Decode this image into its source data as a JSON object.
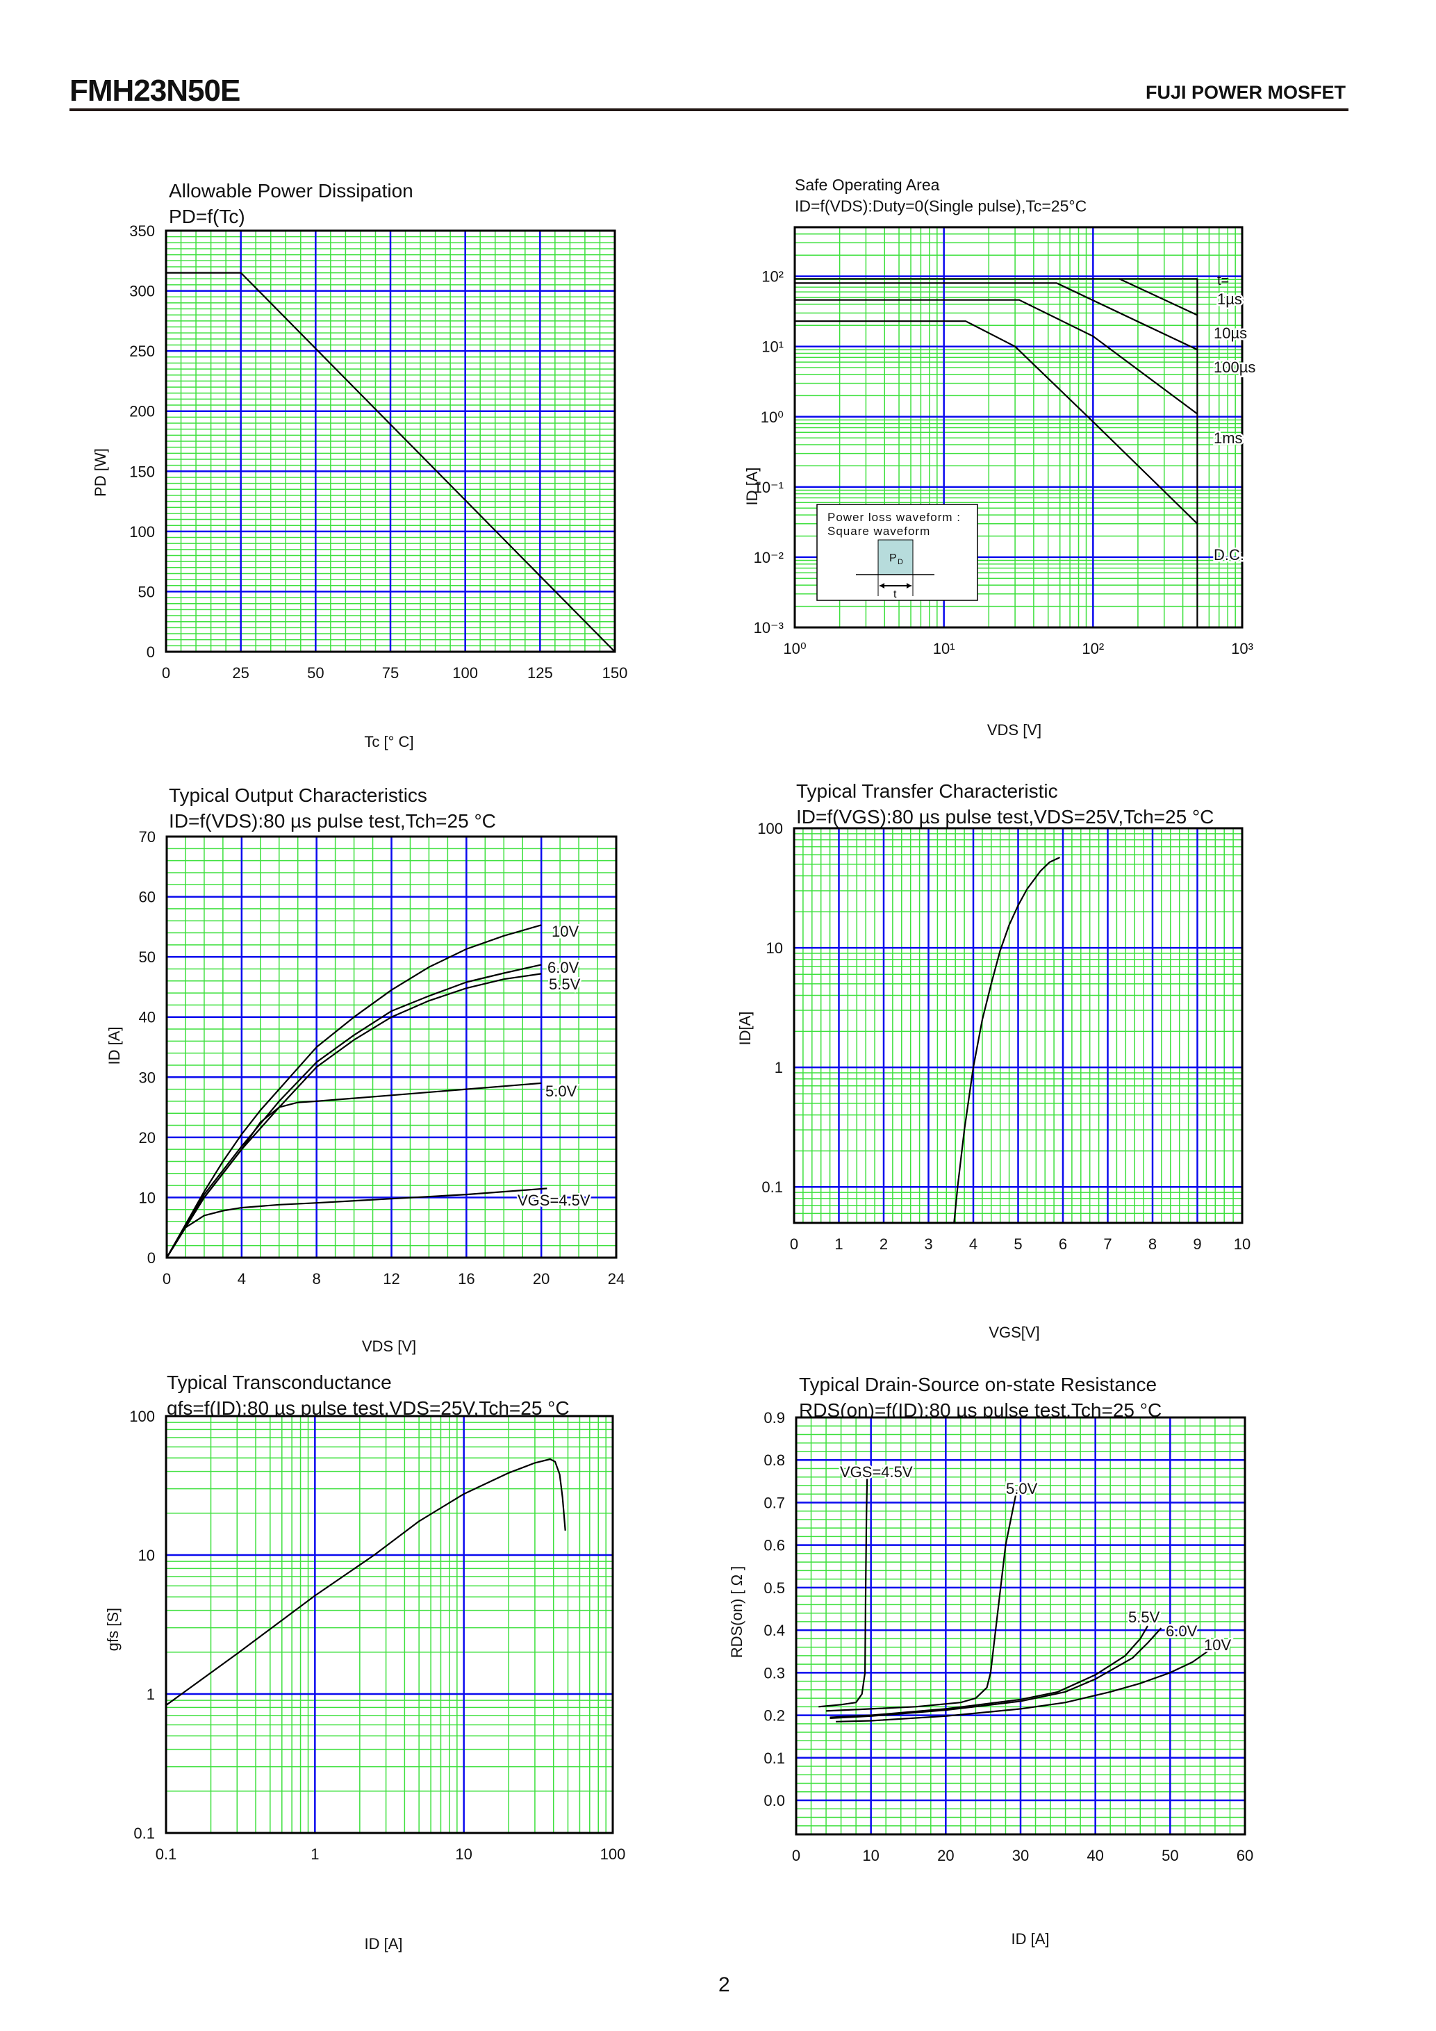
{
  "header": {
    "part_number": "FMH23N50E",
    "brand": "FUJI POWER MOSFET"
  },
  "footer": {
    "page_number": "2"
  },
  "colors": {
    "minor_grid": "#3ee03e",
    "major_grid": "#0a0aee",
    "curve": "#000000",
    "frame": "#000000",
    "pd_box_fill": "#b7dcdc"
  },
  "chart_data": [
    {
      "type": "line",
      "title": "Allowable Power Dissipation",
      "subtitle": "PD=f(Tc)",
      "xlabel": "Tc [° C]",
      "ylabel": "PD [W]",
      "xscale": "linear",
      "yscale": "linear",
      "xlim": [
        0,
        150
      ],
      "ylim": [
        0,
        350
      ],
      "xticks": [
        0,
        25,
        50,
        75,
        100,
        125,
        150
      ],
      "xtick_labels": [
        "0",
        "25",
        "50",
        "75",
        "100",
        "125",
        "150"
      ],
      "yticks": [
        0,
        50,
        100,
        150,
        200,
        250,
        300,
        350
      ],
      "ytick_labels": [
        "0",
        "50",
        "100",
        "150",
        "200",
        "250",
        "300",
        "350"
      ],
      "grid": true,
      "series": [
        {
          "points": [
            [
              0,
              315
            ],
            [
              25,
              315
            ],
            [
              150,
              0
            ]
          ]
        }
      ]
    },
    {
      "type": "line",
      "title": "Safe Operating Area",
      "subtitle": "ID=f(VDS):Duty=0(Single pulse),Tc=25°C",
      "xlabel": "VDS [V]",
      "ylabel": "ID [A]",
      "xscale": "log",
      "yscale": "log",
      "xlim": [
        1,
        1000
      ],
      "ylim": [
        0.001,
        500
      ],
      "xticks": [
        1,
        10,
        100,
        1000
      ],
      "xtick_labels": [
        "10⁰",
        "10¹",
        "10²",
        "10³"
      ],
      "yticks": [
        0.001,
        0.01,
        0.1,
        1,
        10,
        100
      ],
      "ytick_labels": [
        "10⁻³",
        "10⁻²",
        "10⁻¹",
        "10⁰",
        "10¹",
        "10²"
      ],
      "grid": true,
      "legend_header": "t=",
      "series": [
        {
          "name": "1µs",
          "points": [
            [
              1,
              92
            ],
            [
              500,
              92
            ],
            [
              500,
              0.001
            ]
          ],
          "extra": [
            [
              150,
              92
            ],
            [
              500,
              28
            ]
          ]
        },
        {
          "name": "10µs",
          "points": [
            [
              1,
              80
            ],
            [
              57,
              80
            ],
            [
              500,
              9
            ]
          ]
        },
        {
          "name": "100µs",
          "points": [
            [
              1,
              46
            ],
            [
              32,
              46
            ],
            [
              100,
              14
            ],
            [
              500,
              1.1
            ]
          ]
        },
        {
          "name": "1ms",
          "points": []
        },
        {
          "name": "D.C.",
          "points": [
            [
              1,
              23
            ],
            [
              14,
              23
            ],
            [
              30,
              10
            ],
            [
              100,
              0.85
            ],
            [
              500,
              0.03
            ]
          ]
        }
      ],
      "inset": {
        "line1": "Power loss waveform :",
        "line2": "Square waveform",
        "pulse_label": "P",
        "pulse_sub": "D",
        "width_label": "t"
      }
    },
    {
      "type": "line",
      "title": "Typical Output Characteristics",
      "subtitle": "ID=f(VDS):80 µs pulse test,Tch=25 °C",
      "xlabel": "VDS [V]",
      "ylabel": "ID [A]",
      "xscale": "linear",
      "yscale": "linear",
      "xlim": [
        0,
        24
      ],
      "ylim": [
        0,
        70
      ],
      "xticks": [
        0,
        4,
        8,
        12,
        16,
        20,
        24
      ],
      "xtick_labels": [
        "0",
        "4",
        "8",
        "12",
        "16",
        "20",
        "24"
      ],
      "yticks": [
        0,
        10,
        20,
        30,
        40,
        50,
        60,
        70
      ],
      "ytick_labels": [
        "0",
        "10",
        "20",
        "30",
        "40",
        "50",
        "60",
        "70"
      ],
      "grid": true,
      "series": [
        {
          "name": "10V",
          "points": [
            [
              0,
              0
            ],
            [
              1,
              5.5
            ],
            [
              2,
              11
            ],
            [
              3,
              16
            ],
            [
              4,
              20.5
            ],
            [
              5,
              24.5
            ],
            [
              6,
              28
            ],
            [
              7,
              31.5
            ],
            [
              8,
              35
            ],
            [
              10,
              40
            ],
            [
              12,
              44.5
            ],
            [
              14,
              48.3
            ],
            [
              16,
              51.3
            ],
            [
              18,
              53.5
            ],
            [
              20,
              55.3
            ]
          ]
        },
        {
          "name": "6.0V",
          "points": [
            [
              0,
              0
            ],
            [
              2,
              10.5
            ],
            [
              4,
              18.5
            ],
            [
              6,
              26
            ],
            [
              8,
              32.5
            ],
            [
              10,
              37
            ],
            [
              12,
              41
            ],
            [
              14,
              43.5
            ],
            [
              16,
              45.8
            ],
            [
              18,
              47.3
            ],
            [
              20,
              48.7
            ]
          ]
        },
        {
          "name": "5.5V",
          "points": [
            [
              0,
              0
            ],
            [
              2,
              10
            ],
            [
              4,
              18
            ],
            [
              6,
              25
            ],
            [
              8,
              31.7
            ],
            [
              10,
              36.2
            ],
            [
              12,
              40
            ],
            [
              14,
              42.7
            ],
            [
              16,
              44.8
            ],
            [
              18,
              46.3
            ],
            [
              20,
              47.2
            ]
          ]
        },
        {
          "name": "5.0V",
          "points": [
            [
              0,
              0
            ],
            [
              2,
              10
            ],
            [
              4,
              18
            ],
            [
              5,
              22.5
            ],
            [
              6,
              25
            ],
            [
              7,
              25.8
            ],
            [
              8,
              26
            ],
            [
              12,
              27
            ],
            [
              16,
              28
            ],
            [
              20,
              29
            ]
          ]
        },
        {
          "name": "VGS=4.5V",
          "points": [
            [
              0,
              0
            ],
            [
              1,
              5
            ],
            [
              2,
              7
            ],
            [
              3,
              7.8
            ],
            [
              4,
              8.3
            ],
            [
              6,
              8.8
            ],
            [
              8,
              9.1
            ],
            [
              12,
              9.8
            ],
            [
              16,
              10.5
            ],
            [
              20.3,
              11.5
            ]
          ]
        }
      ]
    },
    {
      "type": "line",
      "title": "Typical Transfer Characteristic",
      "subtitle": "ID=f(VGS):80 µs pulse test,VDS=25V,Tch=25 °C",
      "xlabel": "VGS[V]",
      "ylabel": "ID[A]",
      "xscale": "linear",
      "yscale": "log",
      "xlim": [
        0,
        10
      ],
      "ylim": [
        0.05,
        100
      ],
      "xticks": [
        0,
        1,
        2,
        3,
        4,
        5,
        6,
        7,
        8,
        9,
        10
      ],
      "xtick_labels": [
        "0",
        "1",
        "2",
        "3",
        "4",
        "5",
        "6",
        "7",
        "8",
        "9",
        "10"
      ],
      "yticks": [
        0.1,
        1,
        10,
        100
      ],
      "ytick_labels": [
        "0.1",
        "1",
        "10",
        "100"
      ],
      "grid": true,
      "series": [
        {
          "points": [
            [
              3.57,
              0.05
            ],
            [
              3.65,
              0.1
            ],
            [
              3.8,
              0.3
            ],
            [
              4.0,
              1
            ],
            [
              4.2,
              2.5
            ],
            [
              4.4,
              5
            ],
            [
              4.6,
              9.5
            ],
            [
              4.8,
              15.5
            ],
            [
              5.0,
              22.6
            ],
            [
              5.2,
              31
            ],
            [
              5.5,
              44
            ],
            [
              5.7,
              52
            ],
            [
              5.93,
              57
            ]
          ]
        }
      ]
    },
    {
      "type": "line",
      "title": "Typical Transconductance",
      "subtitle": "gfs=f(ID):80 µs pulse test,VDS=25V,Tch=25 °C",
      "xlabel": "ID [A]",
      "ylabel": "gfs [S]",
      "xscale": "log",
      "yscale": "log",
      "xlim": [
        0.1,
        100
      ],
      "ylim": [
        0.1,
        100
      ],
      "xticks": [
        0.1,
        1,
        10,
        100
      ],
      "xtick_labels": [
        "0.1",
        "1",
        "10",
        "100"
      ],
      "yticks": [
        0.1,
        1,
        10,
        100
      ],
      "ytick_labels": [
        "0.1",
        "1",
        "10",
        "100"
      ],
      "grid": true,
      "series": [
        {
          "points": [
            [
              0.1,
              0.83
            ],
            [
              0.3,
              1.95
            ],
            [
              1,
              5.1
            ],
            [
              2.5,
              10
            ],
            [
              5,
              17.5
            ],
            [
              10,
              27.5
            ],
            [
              20,
              39
            ],
            [
              30,
              46
            ],
            [
              38,
              49
            ],
            [
              41,
              47
            ],
            [
              44,
              38
            ],
            [
              46,
              26
            ],
            [
              48,
              15
            ]
          ]
        }
      ]
    },
    {
      "type": "line",
      "title": "Typical Drain-Source on-state Resistance",
      "subtitle": "RDS(on)=f(ID):80  µs pulse test,Tch=25 °C",
      "xlabel": "ID [A]",
      "ylabel": "RDS(on) [ Ω ]",
      "xscale": "linear",
      "yscale": "linear",
      "xlim": [
        0,
        60
      ],
      "ylim": [
        -0.08,
        0.9
      ],
      "xticks": [
        0,
        10,
        20,
        30,
        40,
        50,
        60
      ],
      "xtick_labels": [
        "0",
        "10",
        "20",
        "30",
        "40",
        "50",
        "60"
      ],
      "yticks": [
        0.0,
        0.1,
        0.2,
        0.3,
        0.4,
        0.5,
        0.6,
        0.7,
        0.8,
        0.9
      ],
      "ytick_labels": [
        "0.0",
        "0.1",
        "0.2",
        "0.3",
        "0.4",
        "0.5",
        "0.6",
        "0.7",
        "0.8",
        "0.9"
      ],
      "grid": true,
      "series": [
        {
          "name": "VGS=4.5V",
          "points": [
            [
              3,
              0.22
            ],
            [
              6,
              0.225
            ],
            [
              8,
              0.23
            ],
            [
              8.8,
              0.25
            ],
            [
              9.2,
              0.3
            ],
            [
              9.3,
              0.5
            ],
            [
              9.4,
              0.67
            ],
            [
              9.5,
              0.77
            ]
          ]
        },
        {
          "name": "5.0V",
          "points": [
            [
              4,
              0.21
            ],
            [
              10,
              0.215
            ],
            [
              16,
              0.22
            ],
            [
              22,
              0.23
            ],
            [
              24,
              0.24
            ],
            [
              25.5,
              0.265
            ],
            [
              26,
              0.3
            ],
            [
              27,
              0.45
            ],
            [
              28,
              0.6
            ],
            [
              29.5,
              0.73
            ]
          ]
        },
        {
          "name": "5.5V",
          "points": [
            [
              4.5,
              0.195
            ],
            [
              10,
              0.2
            ],
            [
              20,
              0.215
            ],
            [
              30,
              0.237
            ],
            [
              35,
              0.255
            ],
            [
              40,
              0.295
            ],
            [
              44,
              0.34
            ],
            [
              46,
              0.38
            ],
            [
              47,
              0.41
            ]
          ]
        },
        {
          "name": "6.0V",
          "points": [
            [
              4.5,
              0.193
            ],
            [
              10,
              0.198
            ],
            [
              20,
              0.212
            ],
            [
              30,
              0.233
            ],
            [
              36,
              0.255
            ],
            [
              40,
              0.285
            ],
            [
              45,
              0.335
            ],
            [
              47,
              0.37
            ],
            [
              48.8,
              0.405
            ]
          ]
        },
        {
          "name": "10V",
          "points": [
            [
              5.3,
              0.185
            ],
            [
              10,
              0.187
            ],
            [
              20,
              0.198
            ],
            [
              30,
              0.215
            ],
            [
              36,
              0.23
            ],
            [
              42,
              0.255
            ],
            [
              46,
              0.275
            ],
            [
              50,
              0.3
            ],
            [
              53,
              0.325
            ],
            [
              55.8,
              0.36
            ]
          ]
        }
      ]
    }
  ]
}
